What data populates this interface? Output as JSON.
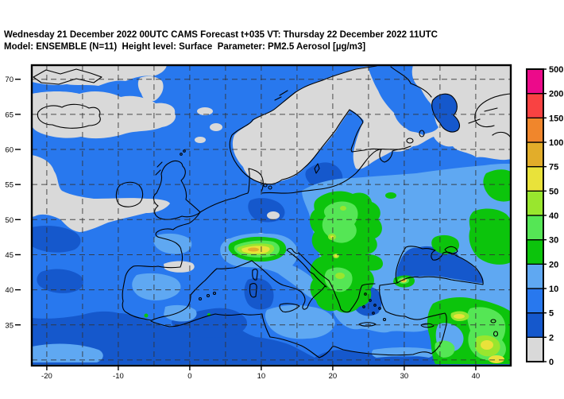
{
  "title": {
    "line1": "Wednesday 21 December 2022 00UTC CAMS Forecast t+035 VT: Thursday 22 December 2022 11UTC",
    "line2": "Model: ENSEMBLE (N=11)  Height level: Surface  Parameter: PM2.5 Aerosol [µg/m3]"
  },
  "map": {
    "lat_labels": [
      "70",
      "65",
      "60",
      "55",
      "50",
      "45",
      "40",
      "35"
    ],
    "lon_labels": [
      "-20",
      "-10",
      "0",
      "10",
      "20",
      "30",
      "40"
    ]
  },
  "colorbar": {
    "levels": [
      "0",
      "2",
      "5",
      "10",
      "20",
      "30",
      "40",
      "50",
      "75",
      "100",
      "150",
      "200",
      "500"
    ],
    "colors": [
      "#d9d9d9",
      "#1558cc",
      "#2878ee",
      "#5fa8f2",
      "#0cc40c",
      "#55e655",
      "#99e62e",
      "#e9e23a",
      "#e2ad2a",
      "#f0862c",
      "#f94242",
      "#ec0a8a"
    ]
  },
  "palette": {
    "lt2": "#d9d9d9",
    "v2_5": "#1558cc",
    "v5_10": "#2878ee",
    "v10_20": "#5fa8f2",
    "v20_30": "#0cc40c",
    "v30_40": "#55e655",
    "v40_50": "#99e62e",
    "v50_75": "#e9e23a",
    "v75_100": "#e2ad2a",
    "v100_150": "#f0862c",
    "v150_200": "#f94242",
    "v200_500": "#ec0a8a"
  }
}
